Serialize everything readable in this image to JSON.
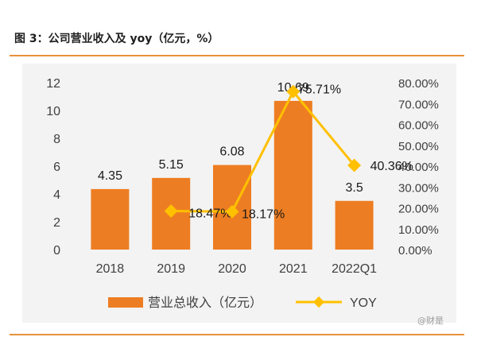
{
  "header": {
    "title": "图 3：公司营业收入及 yoy（亿元，%）"
  },
  "watermark": "@财是",
  "colors": {
    "bar": "#ed7d22",
    "line": "#ffc000",
    "rule": "#e8913a",
    "panel": "#f3f3f3",
    "text": "#404040"
  },
  "chart_data": {
    "type": "bar",
    "categories": [
      "2018",
      "2019",
      "2020",
      "2021",
      "2022Q1"
    ],
    "series": [
      {
        "name": "营业总收入（亿元）",
        "type": "bar",
        "axis": "left",
        "values": [
          4.35,
          5.15,
          6.08,
          10.69,
          3.5
        ],
        "labels": [
          "4.35",
          "5.15",
          "6.08",
          "10.69",
          "3.5"
        ]
      },
      {
        "name": "YOY",
        "type": "line",
        "axis": "right",
        "values": [
          null,
          18.47,
          18.17,
          75.71,
          40.36
        ],
        "labels": [
          "",
          "18.47%",
          "18.17%",
          "75.71%",
          "40.36%"
        ]
      }
    ],
    "left_axis": {
      "ylim": [
        0,
        12
      ],
      "ticks": [
        "0",
        "2",
        "4",
        "6",
        "8",
        "10",
        "12"
      ]
    },
    "right_axis": {
      "ylim": [
        0,
        80
      ],
      "ticks": [
        "0.00%",
        "10.00%",
        "20.00%",
        "30.00%",
        "40.00%",
        "50.00%",
        "60.00%",
        "70.00%",
        "80.00%"
      ]
    },
    "legend_position": "bottom",
    "grid": false
  }
}
